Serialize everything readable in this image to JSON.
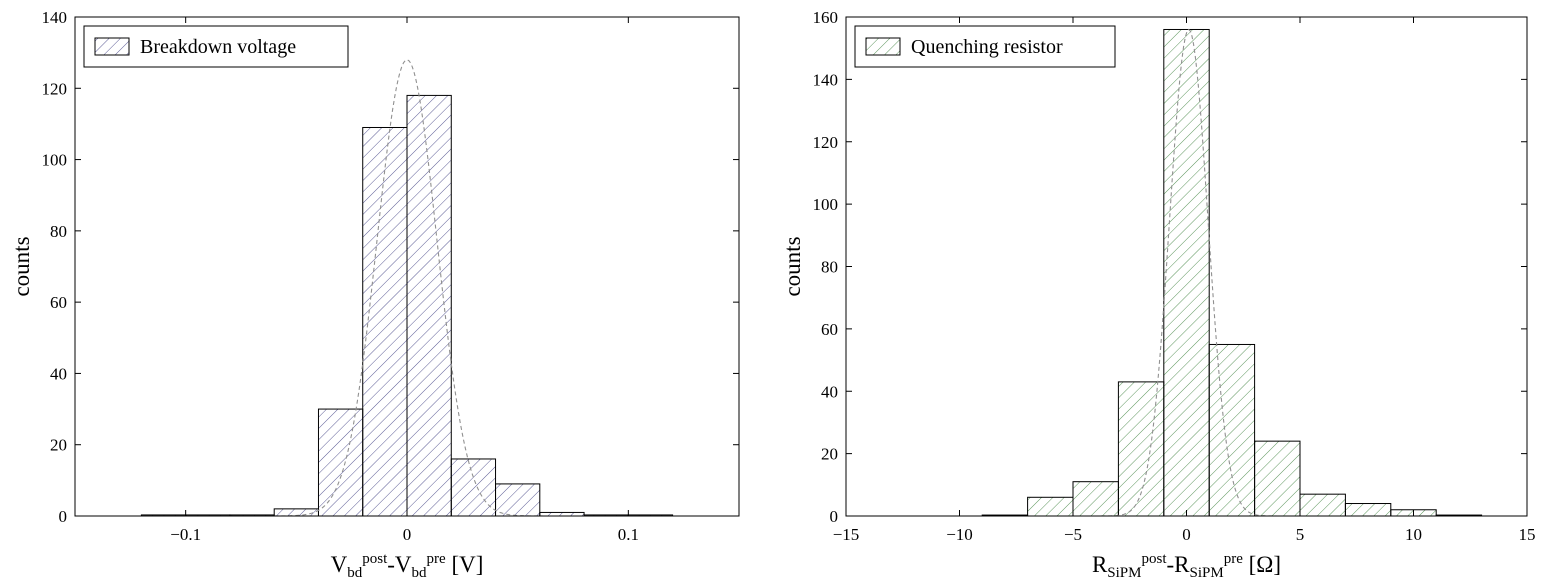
{
  "chart_data": [
    {
      "type": "bar",
      "legend": "Breakdown voltage",
      "legend_position": "top-left",
      "xlabel": {
        "main1": "V",
        "sub1": "bd",
        "sup1": "post",
        "sep": "-",
        "main2": "V",
        "sub2": "bd",
        "sup2": "pre",
        "unit": " [V]"
      },
      "ylabel": "counts",
      "xlim": [
        -0.15,
        0.15
      ],
      "ylim": [
        0,
        140
      ],
      "xticks": [
        -0.1,
        0,
        0.1
      ],
      "xtick_labels": [
        "−0.1",
        "0",
        "0.1"
      ],
      "yticks": [
        0,
        20,
        40,
        60,
        80,
        100,
        120,
        140
      ],
      "ytick_labels": [
        "0",
        "20",
        "40",
        "60",
        "80",
        "100",
        "120",
        "140"
      ],
      "bin_edges": [
        -0.12,
        -0.1,
        -0.08,
        -0.06,
        -0.04,
        -0.02,
        0,
        0.02,
        0.04,
        0.06,
        0.08,
        0.1,
        0.12
      ],
      "values": [
        0.3,
        0.3,
        0.3,
        2,
        30,
        109,
        118,
        16,
        9,
        1,
        0.3,
        0.3
      ],
      "fit": {
        "shape": "gaussian",
        "amplitude": 128,
        "mean": 0.0,
        "sigma": 0.0135,
        "style": "dashed"
      },
      "colors": {
        "hatch": "#4a4a8a",
        "fit": "#909090"
      }
    },
    {
      "type": "bar",
      "legend": "Quenching resistor",
      "legend_position": "top-left",
      "xlabel": {
        "main1": "R",
        "sub1": "SiPM",
        "sup1": "post",
        "sep": "-",
        "main2": "R",
        "sub2": "SiPM",
        "sup2": "pre",
        "unit": " [Ω]"
      },
      "ylabel": "counts",
      "xlim": [
        -15,
        15
      ],
      "ylim": [
        0,
        160
      ],
      "xticks": [
        -15,
        -10,
        -5,
        0,
        5,
        10,
        15
      ],
      "xtick_labels": [
        "−15",
        "−10",
        "−5",
        "0",
        "5",
        "10",
        "15"
      ],
      "yticks": [
        0,
        20,
        40,
        60,
        80,
        100,
        120,
        140,
        160
      ],
      "ytick_labels": [
        "0",
        "20",
        "40",
        "60",
        "80",
        "100",
        "120",
        "140",
        "160"
      ],
      "bin_edges": [
        -9,
        -7,
        -5,
        -3,
        -1,
        1,
        3,
        5,
        7,
        9,
        11,
        13
      ],
      "values": [
        0.3,
        6,
        11,
        43,
        156,
        55,
        24,
        7,
        4,
        2,
        0.3
      ],
      "fit": {
        "shape": "gaussian",
        "amplitude": 156,
        "mean": 0.1,
        "sigma": 0.85,
        "style": "dashed"
      },
      "colors": {
        "hatch": "#4a8a4a",
        "fit": "#909090"
      }
    }
  ]
}
